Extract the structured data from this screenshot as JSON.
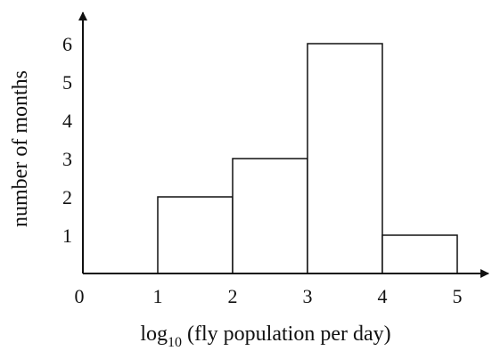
{
  "chart_data": {
    "type": "bar",
    "bins": [
      {
        "from": 1,
        "to": 2,
        "value": 2
      },
      {
        "from": 2,
        "to": 3,
        "value": 3
      },
      {
        "from": 3,
        "to": 4,
        "value": 6
      },
      {
        "from": 4,
        "to": 5,
        "value": 1
      }
    ],
    "xticks": [
      0,
      1,
      2,
      3,
      4,
      5
    ],
    "yticks": [
      1,
      2,
      3,
      4,
      5,
      6
    ],
    "xlim": [
      0,
      5
    ],
    "ylim": [
      0,
      6
    ],
    "xlabel": {
      "prefix": "log",
      "subscript": "10",
      "suffix": " (fly population per day)"
    },
    "ylabel": "number of months",
    "grid": false,
    "colors": {
      "bar_fill": "#ffffff",
      "stroke": "#111111"
    }
  }
}
